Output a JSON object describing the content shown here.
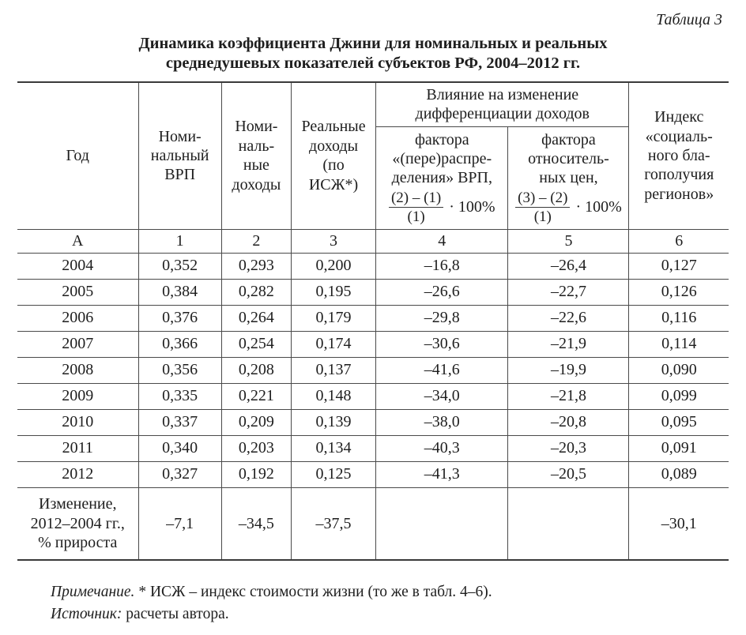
{
  "table_label": "Таблица 3",
  "title": "Динамика коэффициента Джини для номинальных и реальных\nсреднедушевых показателей субъектов РФ, 2004–2012 гг.",
  "header": {
    "year": "Год",
    "col1": "Номи-\nнальный\nВРП",
    "col2": "Номи-\nналь-\nные\nдоходы",
    "col3": "Реальные\nдоходы\n(по\nИСЖ*)",
    "group": "Влияние на изменение\nдифференциации доходов",
    "factor1_label": "фактора\n«(пере)распре-\nделения» ВРП,",
    "factor1_formula": {
      "num": "(2) – (1)",
      "den": "(1)",
      "mult": "· 100%"
    },
    "factor2_label": "фактора\nотноситель-\nных цен,",
    "factor2_formula": {
      "num": "(3) – (2)",
      "den": "(1)",
      "mult": "· 100%"
    },
    "col6": "Индекс\n«социаль-\nного бла-\nгополучия\nрегионов»"
  },
  "index_row": [
    "А",
    "1",
    "2",
    "3",
    "4",
    "5",
    "6"
  ],
  "rows": [
    [
      "2004",
      "0,352",
      "0,293",
      "0,200",
      "–16,8",
      "–26,4",
      "0,127"
    ],
    [
      "2005",
      "0,384",
      "0,282",
      "0,195",
      "–26,6",
      "–22,7",
      "0,126"
    ],
    [
      "2006",
      "0,376",
      "0,264",
      "0,179",
      "–29,8",
      "–22,6",
      "0,116"
    ],
    [
      "2007",
      "0,366",
      "0,254",
      "0,174",
      "–30,6",
      "–21,9",
      "0,114"
    ],
    [
      "2008",
      "0,356",
      "0,208",
      "0,137",
      "–41,6",
      "–19,9",
      "0,090"
    ],
    [
      "2009",
      "0,335",
      "0,221",
      "0,148",
      "–34,0",
      "–21,8",
      "0,099"
    ],
    [
      "2010",
      "0,337",
      "0,209",
      "0,139",
      "–38,0",
      "–20,8",
      "0,095"
    ],
    [
      "2011",
      "0,340",
      "0,203",
      "0,134",
      "–40,3",
      "–20,3",
      "0,091"
    ],
    [
      "2012",
      "0,327",
      "0,192",
      "0,125",
      "–41,3",
      "–20,5",
      "0,089"
    ]
  ],
  "summary_row": {
    "label": "Изменение,\n2012–2004 гг.,\n% прироста",
    "values": [
      "–7,1",
      "–34,5",
      "–37,5",
      "",
      "",
      "–30,1"
    ]
  },
  "notes": [
    {
      "lead": "Примечание.",
      "text": " * ИСЖ – индекс стоимости жизни (то же в табл. 4–6)."
    },
    {
      "lead": "Источник:",
      "text": " расчеты автора."
    }
  ]
}
